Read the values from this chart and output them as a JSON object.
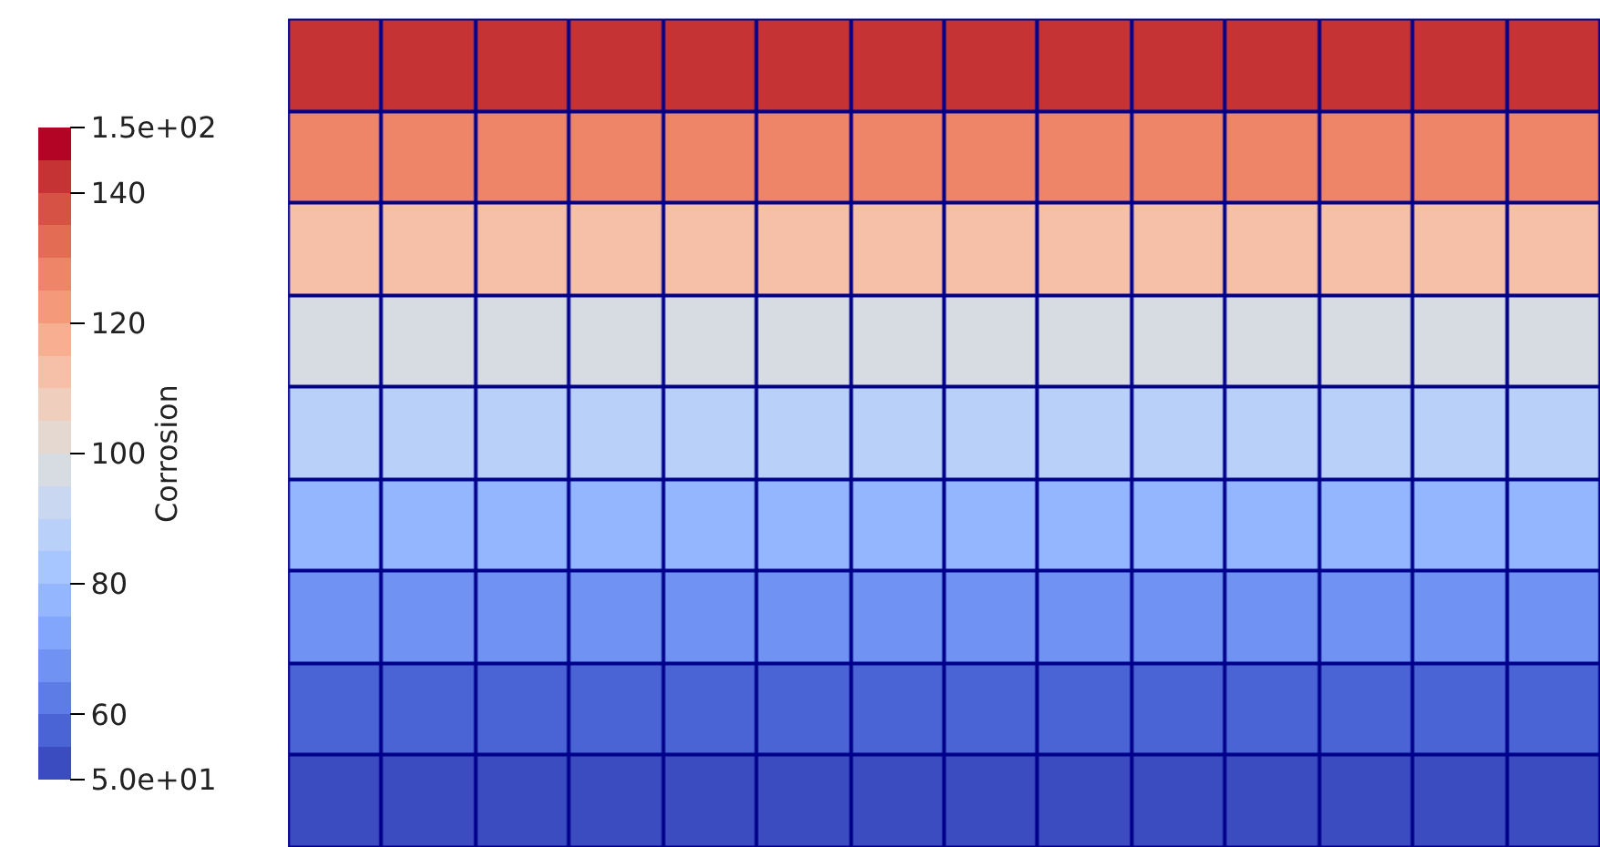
{
  "chart_data": {
    "type": "heatmap",
    "clabel": "Corrosion",
    "categories": [
      null,
      null,
      null,
      null,
      null,
      null,
      null,
      null,
      null,
      null,
      null,
      null,
      null,
      null
    ],
    "y_categories": [
      null,
      null,
      null,
      null,
      null,
      null,
      null,
      null,
      null
    ],
    "cells": [
      [
        140,
        140,
        140,
        140,
        140,
        140,
        140,
        140,
        140,
        140,
        140,
        140,
        140,
        140
      ],
      [
        128,
        128,
        128,
        128,
        128,
        128,
        128,
        128,
        128,
        128,
        128,
        128,
        128,
        128
      ],
      [
        113,
        113,
        113,
        113,
        113,
        113,
        113,
        113,
        113,
        113,
        113,
        113,
        113,
        113
      ],
      [
        97,
        98,
        98,
        98,
        98,
        98,
        98,
        98,
        98,
        98,
        98,
        98,
        98,
        98
      ],
      [
        86,
        88,
        88,
        88,
        88,
        88,
        88,
        88,
        88,
        88,
        88,
        88,
        88,
        88
      ],
      [
        76,
        77,
        77,
        77,
        77,
        77,
        77,
        77,
        77,
        77,
        77,
        77,
        77,
        77
      ],
      [
        65,
        67,
        67,
        67,
        67,
        67,
        67,
        67,
        67,
        67,
        67,
        67,
        67,
        67
      ],
      [
        56,
        57,
        57,
        57,
        57,
        57,
        57,
        57,
        57,
        57,
        57,
        57,
        57,
        57
      ],
      [
        52,
        52,
        52,
        52,
        52,
        52,
        52,
        52,
        52,
        52,
        52,
        52,
        52,
        52
      ]
    ],
    "clim": [
      50,
      150
    ],
    "cticks": [
      {
        "value": 50,
        "label": "5.0e+01"
      },
      60,
      80,
      100,
      120,
      140,
      {
        "value": 150,
        "label": "1.5e+02"
      }
    ],
    "colors": [
      "#3b4cc0",
      "#4b64d5",
      "#5d7ce6",
      "#6f92f3",
      "#82a6fb",
      "#94b6ff",
      "#a7c5fe",
      "#b9d0f9",
      "#c9d7f0",
      "#d7dce3",
      "#e5d8d1",
      "#efcebd",
      "#f5c0a7",
      "#f7ae91",
      "#f4997a",
      "#ee8468",
      "#e36c55",
      "#d65244",
      "#c53334",
      "#b40426"
    ]
  }
}
